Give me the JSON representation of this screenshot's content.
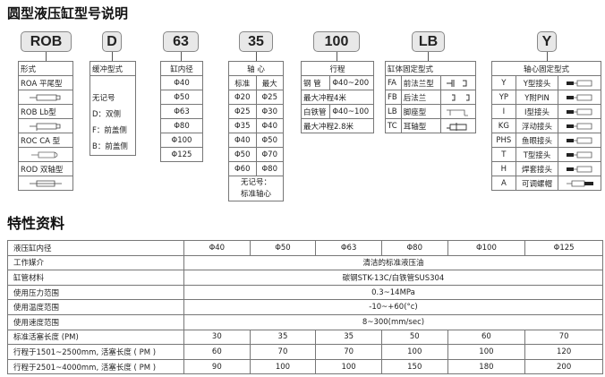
{
  "title": "圆型液压缸型号说明",
  "codes": {
    "type": "ROB",
    "cushion": "D",
    "bore": "63",
    "rod": "35",
    "stroke": "100",
    "mount": "LB",
    "rod_end": "Y"
  },
  "type_table": {
    "header": "形式",
    "items": [
      "ROA 平尾型",
      "ROB Lb型",
      "ROC CA 型",
      "ROD 双轴型"
    ]
  },
  "cushion_table": {
    "header": "缓冲型式",
    "items": [
      "无记号",
      "D：双侧",
      "F：前盖侧",
      "B：前盖侧"
    ]
  },
  "bore_table": {
    "header": "缸内径",
    "items": [
      "Φ40",
      "Φ50",
      "Φ63",
      "Φ80",
      "Φ100",
      "Φ125"
    ]
  },
  "rod_table": {
    "header": "轴 心",
    "col_std": "标准",
    "col_max": "最大",
    "rows": [
      [
        "Φ20",
        "Φ25"
      ],
      [
        "Φ25",
        "Φ30"
      ],
      [
        "Φ35",
        "Φ40"
      ],
      [
        "Φ40",
        "Φ50"
      ],
      [
        "Φ50",
        "Φ70"
      ],
      [
        "Φ60",
        "Φ80"
      ]
    ],
    "note1": "无记号：",
    "note2": "标准轴心"
  },
  "stroke_table": {
    "header": "行程",
    "steel": "钢 管",
    "steel_range": "Φ40~200",
    "steel_max": "最大冲程4米",
    "iron": "白铁管",
    "iron_range": "Φ40~100",
    "iron_max": "最大冲程2.8米"
  },
  "mount_table": {
    "header": "缸体固定型式",
    "rows": [
      [
        "FA",
        "前法兰型"
      ],
      [
        "FB",
        "后法兰"
      ],
      [
        "LB",
        "脚座型"
      ],
      [
        "TC",
        "耳轴型"
      ]
    ]
  },
  "rodend_table": {
    "header": "轴心固定型式",
    "rows": [
      [
        "Y",
        "Y型接头"
      ],
      [
        "YP",
        "Y附PIN"
      ],
      [
        "I",
        "I型接头"
      ],
      [
        "KG",
        "浮动接头"
      ],
      [
        "PHS",
        "鱼眼接头"
      ],
      [
        "T",
        "T型接头"
      ],
      [
        "H",
        "焊套接头"
      ],
      [
        "A",
        "可调螺帽"
      ]
    ]
  },
  "spec_title": "特性资料",
  "spec": {
    "header": [
      "液压缸内径",
      "Φ40",
      "Φ50",
      "Φ63",
      "Φ80",
      "Φ100",
      "Φ125"
    ],
    "medium": [
      "工作媒介",
      "清洁的标准液压油"
    ],
    "material": [
      "缸管材料",
      "碳钢STK-13C/白铁管SUS304"
    ],
    "pressure": [
      "使用压力范围",
      "0.3~14MPa"
    ],
    "temp": [
      "使用温度范围",
      "-10~+60(°c)"
    ],
    "speed": [
      "使用速度范围",
      "8~300(mm/sec)"
    ],
    "pm_rows": [
      [
        "标准活塞长度 (PM)",
        "30",
        "35",
        "35",
        "50",
        "60",
        "70"
      ],
      [
        "行程于1501~2500mm, 活塞长度 ( PM )",
        "60",
        "70",
        "70",
        "100",
        "100",
        "120"
      ],
      [
        "行程于2501~4000mm, 活塞长度 ( PM )",
        "90",
        "100",
        "100",
        "150",
        "180",
        "200"
      ]
    ]
  }
}
